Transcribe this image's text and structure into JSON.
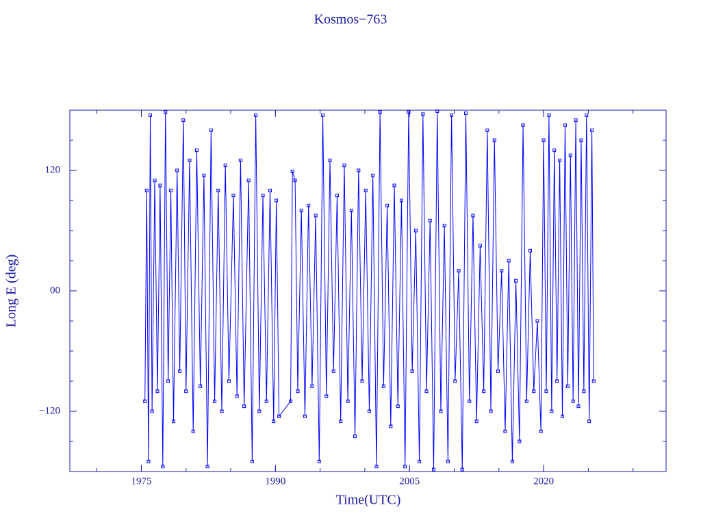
{
  "chart_data": {
    "type": "line",
    "title": "Kosmos−763",
    "x_label": "Time(UTC)",
    "y_label": "Long E (deg)",
    "xlim": [
      1967,
      2033.7
    ],
    "ylim": [
      -180,
      180
    ],
    "xticks": [
      1975,
      1990,
      2005,
      2020
    ],
    "xminorticks": [
      1970,
      1975,
      1980,
      1985,
      1990,
      1995,
      2000,
      2005,
      2010,
      2015,
      2020,
      2025,
      2030
    ],
    "yticks": [
      {
        "value": -120,
        "label": "−120"
      },
      {
        "value": 0,
        "label": "00"
      },
      {
        "value": 120,
        "label": "120"
      }
    ],
    "yminorticks": [
      -150,
      -120,
      -90,
      -60,
      -30,
      0,
      30,
      60,
      90,
      120,
      150
    ],
    "markers": "square",
    "x": [
      1975.4,
      1975.6,
      1975.8,
      1976.0,
      1976.2,
      1976.5,
      1976.8,
      1977.1,
      1977.4,
      1977.7,
      1978.0,
      1978.3,
      1978.6,
      1979.0,
      1979.3,
      1979.7,
      1980.0,
      1980.4,
      1980.8,
      1981.2,
      1981.6,
      1982.0,
      1982.4,
      1982.8,
      1983.2,
      1983.6,
      1984.0,
      1984.4,
      1984.8,
      1985.3,
      1985.7,
      1986.1,
      1986.5,
      1987.0,
      1987.4,
      1987.8,
      1988.2,
      1988.6,
      1989.0,
      1989.4,
      1989.8,
      1990.1,
      1990.4,
      1991.7,
      1991.9,
      1992.2,
      1992.5,
      1992.9,
      1993.3,
      1993.7,
      1994.1,
      1994.5,
      1994.9,
      1995.3,
      1995.7,
      1996.1,
      1996.5,
      1996.9,
      1997.3,
      1997.7,
      1998.1,
      1998.5,
      1998.9,
      1999.3,
      1999.7,
      2000.1,
      2000.5,
      2000.9,
      2001.3,
      2001.7,
      2002.1,
      2002.5,
      2002.9,
      2003.3,
      2003.7,
      2004.1,
      2004.5,
      2004.9,
      2005.3,
      2005.7,
      2006.1,
      2006.5,
      2006.9,
      2007.3,
      2007.7,
      2008.1,
      2008.5,
      2008.9,
      2009.3,
      2009.7,
      2010.1,
      2010.5,
      2010.9,
      2011.3,
      2011.7,
      2012.1,
      2012.5,
      2012.9,
      2013.3,
      2013.7,
      2014.1,
      2014.5,
      2014.9,
      2015.3,
      2015.7,
      2016.1,
      2016.5,
      2016.9,
      2017.3,
      2017.7,
      2018.1,
      2018.5,
      2018.9,
      2019.3,
      2019.7,
      2020.0,
      2020.3,
      2020.6,
      2020.9,
      2021.2,
      2021.5,
      2021.8,
      2022.1,
      2022.4,
      2022.7,
      2023.0,
      2023.3,
      2023.6,
      2023.9,
      2024.2,
      2024.5,
      2024.8,
      2025.1,
      2025.4,
      2025.6
    ],
    "series": [
      {
        "color": "#0000ff",
        "values": [
          -110,
          100,
          -170,
          175,
          -120,
          110,
          -100,
          105,
          -175,
          178,
          -90,
          100,
          -130,
          120,
          -80,
          170,
          -100,
          130,
          -140,
          140,
          -95,
          115,
          -175,
          160,
          -110,
          100,
          -120,
          125,
          -90,
          95,
          -105,
          130,
          -115,
          110,
          -170,
          175,
          -120,
          95,
          -110,
          100,
          -130,
          90,
          -125,
          -110,
          119,
          110,
          -100,
          80,
          -125,
          85,
          -95,
          75,
          -170,
          175,
          -105,
          130,
          -80,
          95,
          -130,
          125,
          -110,
          80,
          -145,
          120,
          -90,
          100,
          -120,
          115,
          -175,
          178,
          -95,
          85,
          -135,
          105,
          -115,
          90,
          -175,
          178,
          -80,
          60,
          -170,
          176,
          -100,
          70,
          -178,
          179,
          -120,
          65,
          -170,
          175,
          -90,
          20,
          -178,
          177,
          -110,
          75,
          -130,
          45,
          -100,
          160,
          -120,
          150,
          -80,
          20,
          -140,
          30,
          -170,
          10,
          -150,
          165,
          -110,
          40,
          -100,
          -30,
          -140,
          150,
          -100,
          175,
          -120,
          140,
          -90,
          130,
          -125,
          165,
          -95,
          135,
          -110,
          170,
          -115,
          150,
          -100,
          175,
          -130,
          160,
          -90
        ]
      }
    ]
  }
}
